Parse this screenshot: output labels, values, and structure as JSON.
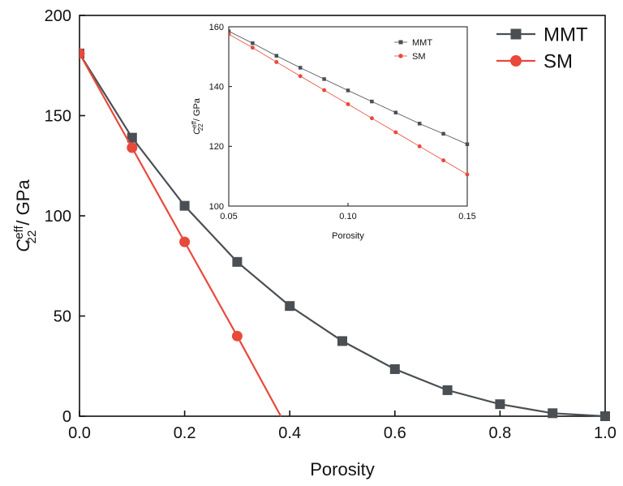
{
  "colors": {
    "MMT": "#4a4f54",
    "SM": "#e8493a"
  },
  "chart_data": [
    {
      "type": "line",
      "xlabel": "Porosity",
      "ylabel": {
        "symbol": "C",
        "sup": "eff",
        "sub": "22",
        "rest": " / GPa"
      },
      "xlim": [
        0,
        1.0
      ],
      "ylim": [
        0,
        200
      ],
      "xticks": [
        0.0,
        0.2,
        0.4,
        0.6,
        0.8,
        1.0
      ],
      "xtick_labels": [
        "0.0",
        "0.2",
        "0.4",
        "0.6",
        "0.8",
        "1.0"
      ],
      "yticks": [
        0,
        50,
        100,
        150,
        200
      ],
      "ytick_labels": [
        "0",
        "50",
        "100",
        "150",
        "200"
      ],
      "legend": "top-right",
      "series": [
        {
          "name": "MMT",
          "marker": "square",
          "x": [
            0.0,
            0.1,
            0.2,
            0.3,
            0.4,
            0.5,
            0.6,
            0.7,
            0.8,
            0.9,
            1.0
          ],
          "y": [
            181,
            139,
            105,
            77,
            55,
            37.5,
            23.5,
            13,
            6,
            1.5,
            0
          ]
        },
        {
          "name": "SM",
          "marker": "circle",
          "x": [
            0.0,
            0.1,
            0.2,
            0.3,
            0.383
          ],
          "y": [
            181,
            134,
            87,
            40,
            0
          ],
          "marker_count": 4
        }
      ]
    },
    {
      "type": "line",
      "inset": true,
      "xlabel": "Porosity",
      "ylabel": {
        "symbol": "C",
        "sup": "eff",
        "sub": "22",
        "rest": " / GPa"
      },
      "xlim": [
        0.05,
        0.15
      ],
      "ylim": [
        100,
        160
      ],
      "xticks": [
        0.05,
        0.1,
        0.15
      ],
      "xtick_labels": [
        "0.05",
        "0.10",
        "0.15"
      ],
      "yticks": [
        100,
        120,
        140,
        160
      ],
      "ytick_labels": [
        "100",
        "120",
        "140",
        "160"
      ],
      "legend": "top-right",
      "series": [
        {
          "name": "MMT",
          "marker": "square",
          "x": [
            0.05,
            0.06,
            0.07,
            0.08,
            0.09,
            0.1,
            0.11,
            0.12,
            0.13,
            0.14,
            0.15
          ],
          "y": [
            158.5,
            154.5,
            150.3,
            146.3,
            142.5,
            138.7,
            135.0,
            131.3,
            127.6,
            124.2,
            120.7
          ]
        },
        {
          "name": "SM",
          "marker": "circle",
          "x": [
            0.05,
            0.06,
            0.07,
            0.08,
            0.09,
            0.1,
            0.11,
            0.12,
            0.13,
            0.14,
            0.15
          ],
          "y": [
            157.5,
            153.0,
            148.2,
            143.5,
            138.8,
            134.1,
            129.4,
            124.7,
            120.0,
            115.3,
            110.6
          ]
        }
      ]
    }
  ]
}
